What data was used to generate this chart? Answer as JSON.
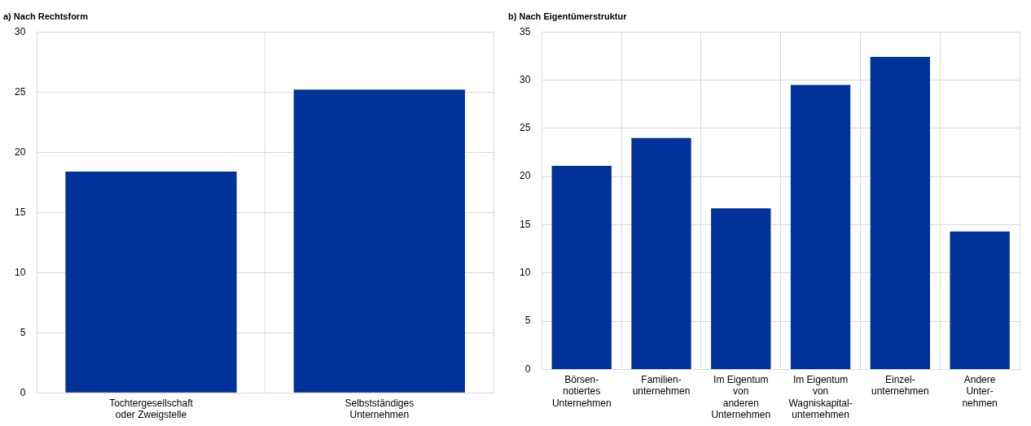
{
  "chart_data": [
    {
      "type": "bar",
      "title": "a) Nach Rechtsform",
      "categories": [
        "Tochtergesellschaft\noder Zweigstelle",
        "Selbstständiges\nUnternehmen"
      ],
      "values": [
        18.4,
        25.2
      ],
      "color": "#003299",
      "ylim": [
        0,
        30
      ],
      "yticks": [
        0,
        5,
        10,
        15,
        20,
        25,
        30
      ],
      "grid": true
    },
    {
      "type": "bar",
      "title": "b) Nach Eigentümerstruktur",
      "categories": [
        "Börsen-\nnotiertes\nUnternehmen",
        "Familien-\nunternehmen",
        "Im Eigentum\nvon\nanderen\nUnternehmen",
        "Im Eigentum\nvon\nWagniskapital-\nunternehmen",
        "Einzel-\nunternehmen",
        "Andere\nUnter-\nnehmen"
      ],
      "values": [
        21.1,
        24.0,
        16.7,
        29.5,
        32.4,
        14.3
      ],
      "color": "#003299",
      "ylim": [
        0,
        35
      ],
      "yticks": [
        0,
        5,
        10,
        15,
        20,
        25,
        30,
        35
      ],
      "grid": true
    }
  ]
}
